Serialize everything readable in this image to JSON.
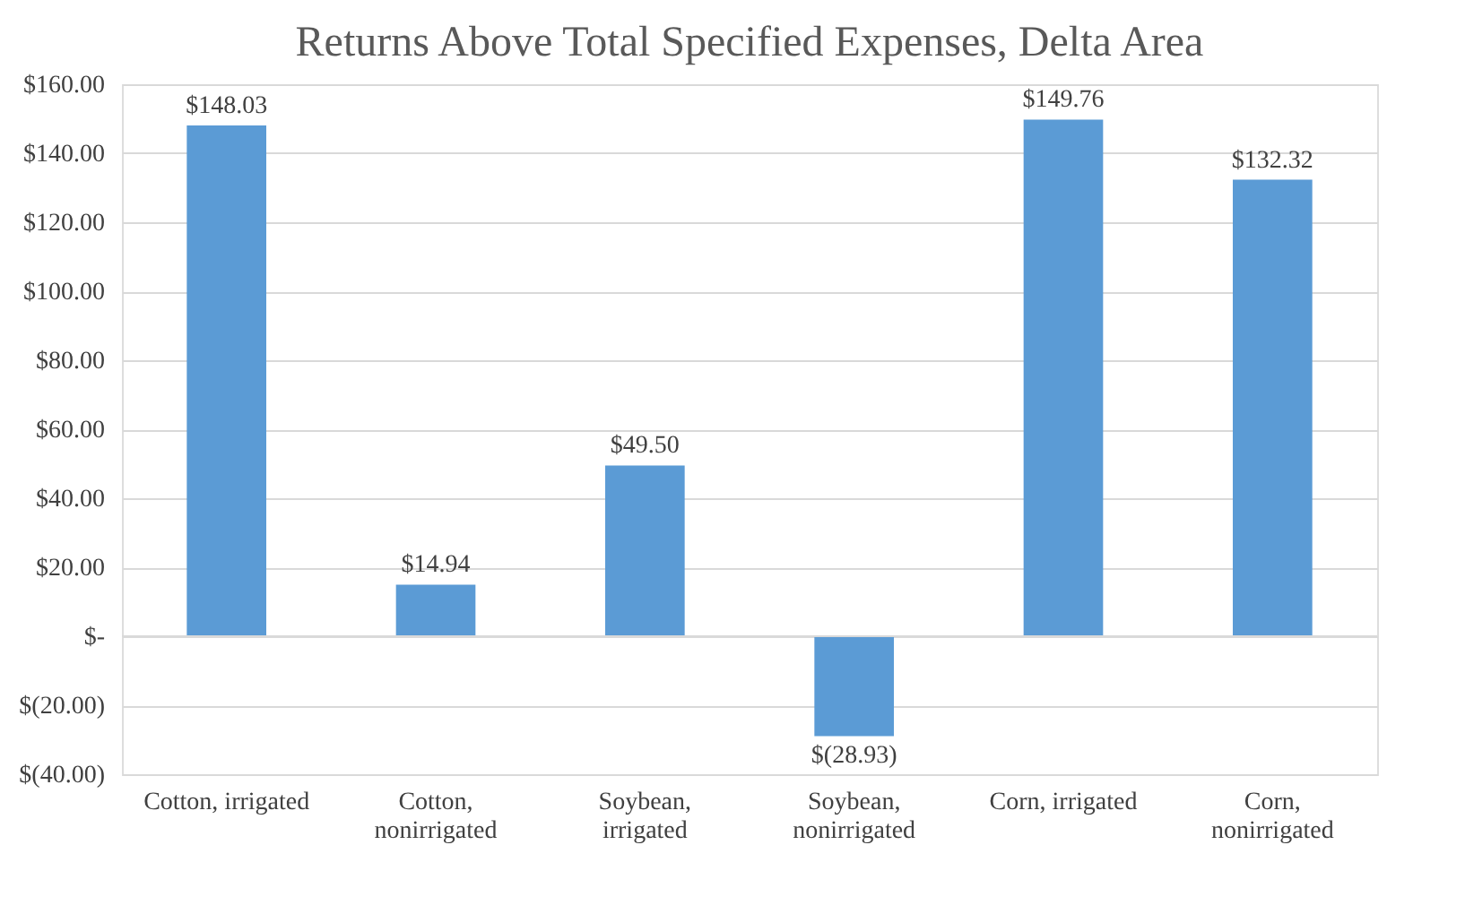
{
  "chart_data": {
    "type": "bar",
    "title": "Returns Above Total Specified Expenses, Delta Area",
    "categories": [
      "Cotton, irrigated",
      "Cotton, nonirrigated",
      "Soybean, irrigated",
      "Soybean, nonirrigated",
      "Corn, irrigated",
      "Corn, nonirrigated"
    ],
    "values": [
      148.03,
      14.94,
      49.5,
      -28.93,
      149.76,
      132.32
    ],
    "value_labels": [
      "$148.03",
      "$14.94",
      "$49.50",
      "$(28.93)",
      "$149.76",
      "$132.32"
    ],
    "color": "#5b9bd5",
    "ylim": [
      -40,
      160
    ],
    "yticks": [
      {
        "value": -40,
        "label": "$(40.00)"
      },
      {
        "value": -20,
        "label": "$(20.00)"
      },
      {
        "value": 0,
        "label": "$-"
      },
      {
        "value": 20,
        "label": "$20.00"
      },
      {
        "value": 40,
        "label": "$40.00"
      },
      {
        "value": 60,
        "label": "$60.00"
      },
      {
        "value": 80,
        "label": "$80.00"
      },
      {
        "value": 100,
        "label": "$100.00"
      },
      {
        "value": 120,
        "label": "$120.00"
      },
      {
        "value": 140,
        "label": "$140.00"
      },
      {
        "value": 160,
        "label": "$160.00"
      }
    ],
    "grid": "y"
  }
}
